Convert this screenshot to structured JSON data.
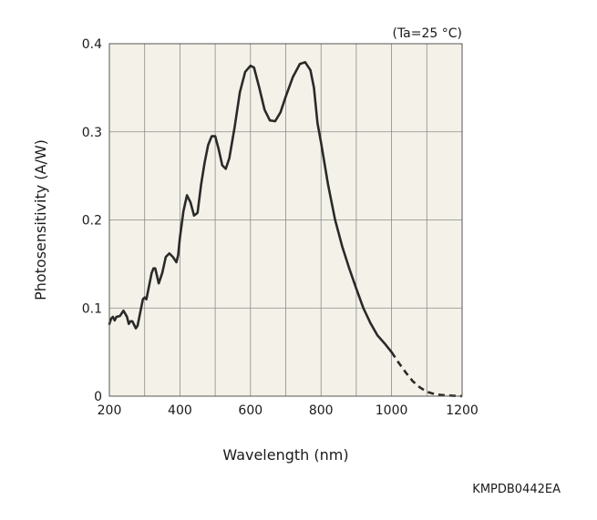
{
  "chart_data": {
    "type": "line",
    "title": "",
    "condition_label": "(Ta=25 °C)",
    "xlabel": "Wavelength (nm)",
    "ylabel": "Photosensitivity (A/W)",
    "xlim": [
      200,
      1200
    ],
    "ylim": [
      0,
      0.4
    ],
    "x_ticks": [
      200,
      400,
      600,
      800,
      1000,
      1200
    ],
    "x_tick_labels": [
      "200",
      "400",
      "600",
      "800",
      "1000",
      "1200"
    ],
    "x_grid": [
      200,
      300,
      400,
      500,
      600,
      700,
      800,
      900,
      1000,
      1100,
      1200
    ],
    "y_ticks": [
      0,
      0.1,
      0.2,
      0.3,
      0.4
    ],
    "y_tick_labels": [
      "0",
      "0.1",
      "0.2",
      "0.3",
      "0.4"
    ],
    "grid": true,
    "background": "#f4f2e8",
    "grid_color": "#8a8a8a",
    "line_color": "#2a2a2a",
    "series": [
      {
        "style": "solid",
        "points": [
          [
            200,
            0.082
          ],
          [
            205,
            0.088
          ],
          [
            210,
            0.09
          ],
          [
            215,
            0.086
          ],
          [
            220,
            0.09
          ],
          [
            230,
            0.091
          ],
          [
            240,
            0.097
          ],
          [
            250,
            0.09
          ],
          [
            255,
            0.082
          ],
          [
            260,
            0.085
          ],
          [
            265,
            0.085
          ],
          [
            275,
            0.077
          ],
          [
            280,
            0.08
          ],
          [
            290,
            0.1
          ],
          [
            295,
            0.11
          ],
          [
            300,
            0.112
          ],
          [
            305,
            0.11
          ],
          [
            310,
            0.12
          ],
          [
            320,
            0.14
          ],
          [
            325,
            0.145
          ],
          [
            330,
            0.145
          ],
          [
            340,
            0.128
          ],
          [
            350,
            0.14
          ],
          [
            360,
            0.158
          ],
          [
            370,
            0.162
          ],
          [
            380,
            0.158
          ],
          [
            390,
            0.152
          ],
          [
            395,
            0.16
          ],
          [
            400,
            0.18
          ],
          [
            410,
            0.21
          ],
          [
            420,
            0.228
          ],
          [
            430,
            0.22
          ],
          [
            440,
            0.205
          ],
          [
            450,
            0.208
          ],
          [
            460,
            0.24
          ],
          [
            470,
            0.265
          ],
          [
            480,
            0.285
          ],
          [
            490,
            0.295
          ],
          [
            500,
            0.295
          ],
          [
            510,
            0.28
          ],
          [
            520,
            0.262
          ],
          [
            530,
            0.258
          ],
          [
            540,
            0.27
          ],
          [
            555,
            0.305
          ],
          [
            570,
            0.345
          ],
          [
            585,
            0.368
          ],
          [
            600,
            0.375
          ],
          [
            610,
            0.373
          ],
          [
            625,
            0.35
          ],
          [
            640,
            0.325
          ],
          [
            655,
            0.313
          ],
          [
            670,
            0.312
          ],
          [
            685,
            0.322
          ],
          [
            700,
            0.34
          ],
          [
            720,
            0.362
          ],
          [
            740,
            0.377
          ],
          [
            755,
            0.379
          ],
          [
            770,
            0.37
          ],
          [
            780,
            0.35
          ],
          [
            790,
            0.31
          ],
          [
            800,
            0.288
          ],
          [
            820,
            0.24
          ],
          [
            840,
            0.2
          ],
          [
            860,
            0.17
          ],
          [
            880,
            0.145
          ],
          [
            900,
            0.122
          ],
          [
            920,
            0.1
          ],
          [
            940,
            0.083
          ],
          [
            960,
            0.069
          ],
          [
            980,
            0.06
          ],
          [
            1000,
            0.05
          ]
        ]
      },
      {
        "style": "dashed",
        "points": [
          [
            1000,
            0.05
          ],
          [
            1020,
            0.038
          ],
          [
            1040,
            0.027
          ],
          [
            1060,
            0.017
          ],
          [
            1080,
            0.01
          ],
          [
            1100,
            0.005
          ],
          [
            1125,
            0.002
          ],
          [
            1150,
            0.001
          ],
          [
            1175,
            0.0005
          ],
          [
            1200,
            0.0
          ]
        ]
      }
    ]
  },
  "footer": {
    "code": "KMPDB0442EA"
  }
}
